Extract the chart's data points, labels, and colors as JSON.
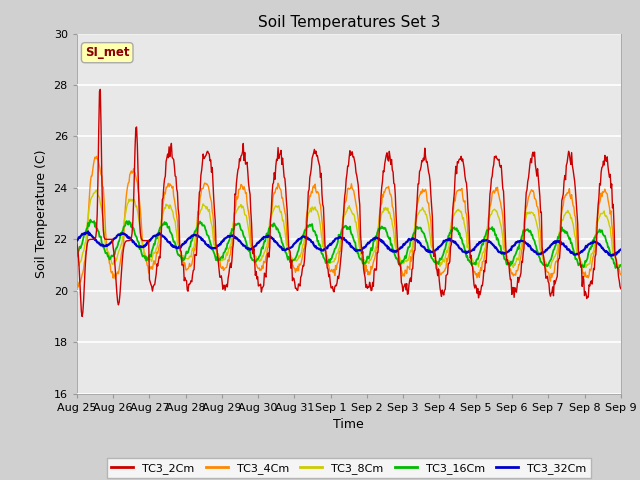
{
  "title": "Soil Temperatures Set 3",
  "xlabel": "Time",
  "ylabel": "Soil Temperature (C)",
  "ylim": [
    16,
    30
  ],
  "yticks": [
    16,
    18,
    20,
    22,
    24,
    26,
    28,
    30
  ],
  "series_names": [
    "TC3_2Cm",
    "TC3_4Cm",
    "TC3_8Cm",
    "TC3_16Cm",
    "TC3_32Cm"
  ],
  "series_colors": [
    "#cc0000",
    "#ff8800",
    "#cccc00",
    "#00bb00",
    "#0000cc"
  ],
  "legend_label": "SI_met",
  "fig_bg_color": "#d0d0d0",
  "plot_bg_color": "#e8e8e8",
  "x_labels": [
    "Aug 25",
    "Aug 26",
    "Aug 27",
    "Aug 28",
    "Aug 29",
    "Aug 30",
    "Aug 31",
    "Sep 1",
    "Sep 2",
    "Sep 3",
    "Sep 4",
    "Sep 5",
    "Sep 6",
    "Sep 7",
    "Sep 8",
    "Sep 9"
  ],
  "n_days": 15,
  "pts_per_day": 48
}
